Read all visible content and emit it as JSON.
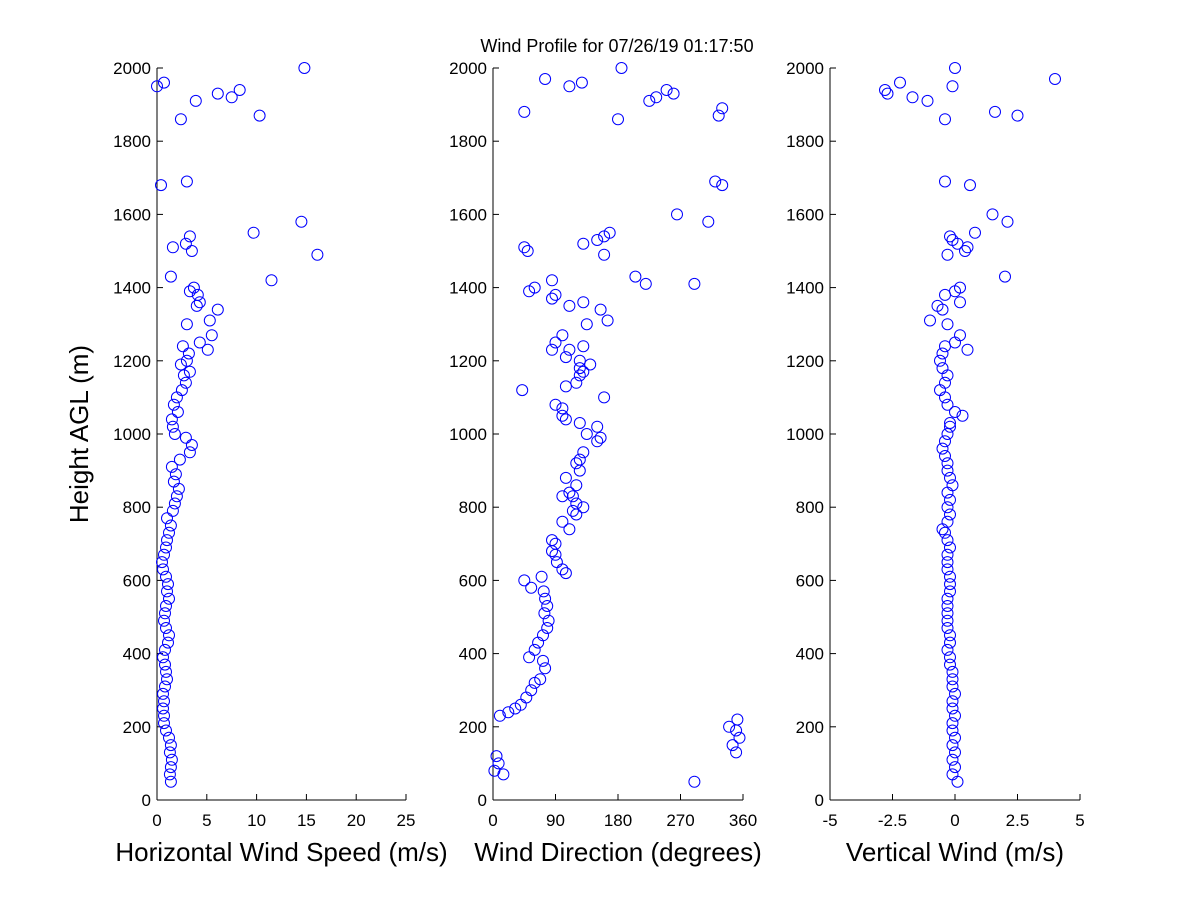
{
  "title": "Wind Profile for  07/26/19 01:17:50",
  "ylabel": "Height AGL (m)",
  "marker_color": "#0000FF",
  "chart_data": [
    {
      "type": "scatter",
      "xlabel": "Horizontal Wind Speed (m/s)",
      "xlim": [
        0,
        25
      ],
      "ylim": [
        0,
        2000
      ],
      "xticks": [
        "0",
        "5",
        "10",
        "15",
        "20",
        "25"
      ],
      "yticks": [
        "0",
        "200",
        "400",
        "600",
        "800",
        "1000",
        "1200",
        "1400",
        "1600",
        "1800",
        "2000"
      ],
      "grid": false,
      "points": [
        [
          1.4,
          50
        ],
        [
          1.3,
          70
        ],
        [
          1.4,
          90
        ],
        [
          1.5,
          110
        ],
        [
          1.3,
          130
        ],
        [
          1.4,
          150
        ],
        [
          1.2,
          170
        ],
        [
          0.9,
          190
        ],
        [
          0.7,
          210
        ],
        [
          0.7,
          230
        ],
        [
          0.6,
          250
        ],
        [
          0.7,
          270
        ],
        [
          0.6,
          290
        ],
        [
          0.8,
          310
        ],
        [
          1.0,
          330
        ],
        [
          0.9,
          350
        ],
        [
          0.8,
          370
        ],
        [
          0.6,
          390
        ],
        [
          0.8,
          410
        ],
        [
          1.1,
          430
        ],
        [
          1.2,
          450
        ],
        [
          0.9,
          470
        ],
        [
          0.7,
          490
        ],
        [
          0.8,
          510
        ],
        [
          0.9,
          530
        ],
        [
          1.2,
          550
        ],
        [
          1.0,
          570
        ],
        [
          1.1,
          590
        ],
        [
          0.9,
          610
        ],
        [
          0.6,
          630
        ],
        [
          0.5,
          650
        ],
        [
          0.7,
          670
        ],
        [
          0.9,
          690
        ],
        [
          1.0,
          710
        ],
        [
          1.2,
          730
        ],
        [
          1.4,
          750
        ],
        [
          1.0,
          770
        ],
        [
          1.6,
          790
        ],
        [
          1.8,
          810
        ],
        [
          2.0,
          830
        ],
        [
          2.2,
          850
        ],
        [
          1.7,
          870
        ],
        [
          1.9,
          890
        ],
        [
          1.5,
          910
        ],
        [
          2.3,
          930
        ],
        [
          3.3,
          950
        ],
        [
          3.5,
          970
        ],
        [
          2.9,
          990
        ],
        [
          1.8,
          1000
        ],
        [
          1.6,
          1020
        ],
        [
          1.5,
          1040
        ],
        [
          2.1,
          1060
        ],
        [
          1.7,
          1080
        ],
        [
          2.0,
          1100
        ],
        [
          2.5,
          1120
        ],
        [
          2.9,
          1140
        ],
        [
          2.7,
          1160
        ],
        [
          3.3,
          1170
        ],
        [
          2.4,
          1190
        ],
        [
          3.0,
          1200
        ],
        [
          3.2,
          1220
        ],
        [
          5.1,
          1230
        ],
        [
          2.6,
          1240
        ],
        [
          4.3,
          1250
        ],
        [
          5.5,
          1270
        ],
        [
          3.0,
          1300
        ],
        [
          5.3,
          1310
        ],
        [
          6.1,
          1340
        ],
        [
          4.0,
          1350
        ],
        [
          4.3,
          1360
        ],
        [
          4.1,
          1380
        ],
        [
          3.7,
          1400
        ],
        [
          3.3,
          1390
        ],
        [
          11.5,
          1420
        ],
        [
          1.4,
          1430
        ],
        [
          16.1,
          1490
        ],
        [
          3.5,
          1500
        ],
        [
          1.6,
          1510
        ],
        [
          2.9,
          1520
        ],
        [
          3.3,
          1540
        ],
        [
          9.7,
          1550
        ],
        [
          14.5,
          1580
        ],
        [
          0.4,
          1680
        ],
        [
          3.0,
          1690
        ],
        [
          2.4,
          1860
        ],
        [
          10.3,
          1870
        ],
        [
          3.9,
          1910
        ],
        [
          7.5,
          1920
        ],
        [
          6.1,
          1930
        ],
        [
          8.3,
          1940
        ],
        [
          0.0,
          1950
        ],
        [
          0.7,
          1960
        ],
        [
          14.8,
          2000
        ]
      ]
    },
    {
      "type": "scatter",
      "xlabel": "Wind Direction (degrees)",
      "xlim": [
        0,
        360
      ],
      "ylim": [
        0,
        2000
      ],
      "xticks": [
        "0",
        "90",
        "180",
        "270",
        "360"
      ],
      "yticks": [
        "0",
        "200",
        "400",
        "600",
        "800",
        "1000",
        "1200",
        "1400",
        "1600",
        "1800",
        "2000"
      ],
      "grid": false,
      "points": [
        [
          290,
          50
        ],
        [
          15,
          70
        ],
        [
          2,
          80
        ],
        [
          8,
          100
        ],
        [
          5,
          120
        ],
        [
          10,
          230
        ],
        [
          22,
          240
        ],
        [
          32,
          250
        ],
        [
          40,
          260
        ],
        [
          48,
          280
        ],
        [
          55,
          300
        ],
        [
          60,
          320
        ],
        [
          68,
          330
        ],
        [
          75,
          360
        ],
        [
          72,
          380
        ],
        [
          52,
          390
        ],
        [
          60,
          410
        ],
        [
          65,
          430
        ],
        [
          72,
          450
        ],
        [
          78,
          470
        ],
        [
          80,
          490
        ],
        [
          74,
          510
        ],
        [
          78,
          530
        ],
        [
          75,
          550
        ],
        [
          73,
          570
        ],
        [
          55,
          580
        ],
        [
          45,
          600
        ],
        [
          70,
          610
        ],
        [
          105,
          620
        ],
        [
          100,
          630
        ],
        [
          92,
          650
        ],
        [
          90,
          670
        ],
        [
          85,
          680
        ],
        [
          90,
          700
        ],
        [
          85,
          710
        ],
        [
          110,
          740
        ],
        [
          100,
          760
        ],
        [
          120,
          780
        ],
        [
          115,
          790
        ],
        [
          130,
          800
        ],
        [
          120,
          810
        ],
        [
          115,
          830
        ],
        [
          100,
          830
        ],
        [
          110,
          840
        ],
        [
          120,
          860
        ],
        [
          105,
          880
        ],
        [
          125,
          900
        ],
        [
          120,
          920
        ],
        [
          125,
          930
        ],
        [
          130,
          950
        ],
        [
          150,
          980
        ],
        [
          155,
          990
        ],
        [
          135,
          1000
        ],
        [
          150,
          1020
        ],
        [
          125,
          1030
        ],
        [
          105,
          1040
        ],
        [
          100,
          1050
        ],
        [
          100,
          1070
        ],
        [
          90,
          1080
        ],
        [
          160,
          1100
        ],
        [
          42,
          1120
        ],
        [
          105,
          1130
        ],
        [
          120,
          1140
        ],
        [
          125,
          1160
        ],
        [
          130,
          1170
        ],
        [
          125,
          1180
        ],
        [
          140,
          1190
        ],
        [
          125,
          1200
        ],
        [
          105,
          1210
        ],
        [
          110,
          1230
        ],
        [
          85,
          1230
        ],
        [
          130,
          1240
        ],
        [
          90,
          1250
        ],
        [
          100,
          1270
        ],
        [
          135,
          1300
        ],
        [
          165,
          1310
        ],
        [
          155,
          1340
        ],
        [
          110,
          1350
        ],
        [
          130,
          1360
        ],
        [
          85,
          1370
        ],
        [
          90,
          1380
        ],
        [
          52,
          1390
        ],
        [
          60,
          1400
        ],
        [
          220,
          1410
        ],
        [
          290,
          1410
        ],
        [
          85,
          1420
        ],
        [
          205,
          1430
        ],
        [
          160,
          1490
        ],
        [
          50,
          1500
        ],
        [
          45,
          1510
        ],
        [
          130,
          1520
        ],
        [
          150,
          1530
        ],
        [
          160,
          1540
        ],
        [
          168,
          1550
        ],
        [
          310,
          1580
        ],
        [
          265,
          1600
        ],
        [
          320,
          1690
        ],
        [
          330,
          1680
        ],
        [
          180,
          1860
        ],
        [
          45,
          1880
        ],
        [
          325,
          1870
        ],
        [
          330,
          1890
        ],
        [
          225,
          1910
        ],
        [
          235,
          1920
        ],
        [
          260,
          1930
        ],
        [
          250,
          1940
        ],
        [
          110,
          1950
        ],
        [
          128,
          1960
        ],
        [
          75,
          1970
        ],
        [
          185,
          2000
        ],
        [
          345,
          150
        ],
        [
          350,
          130
        ],
        [
          355,
          170
        ],
        [
          350,
          190
        ],
        [
          340,
          200
        ],
        [
          352,
          220
        ]
      ]
    },
    {
      "type": "scatter",
      "xlabel": "Vertical Wind (m/s)",
      "xlim": [
        -5,
        5
      ],
      "ylim": [
        0,
        2000
      ],
      "xticks": [
        "-5",
        "-2.5",
        "0",
        "2.5",
        "5"
      ],
      "yticks": [
        "0",
        "200",
        "400",
        "600",
        "800",
        "1000",
        "1200",
        "1400",
        "1600",
        "1800",
        "2000"
      ],
      "grid": false,
      "points": [
        [
          0.1,
          50
        ],
        [
          -0.1,
          70
        ],
        [
          0.0,
          90
        ],
        [
          -0.1,
          110
        ],
        [
          0.0,
          130
        ],
        [
          -0.1,
          150
        ],
        [
          0.0,
          170
        ],
        [
          -0.1,
          190
        ],
        [
          -0.1,
          210
        ],
        [
          0.0,
          230
        ],
        [
          -0.1,
          250
        ],
        [
          -0.1,
          270
        ],
        [
          0.0,
          290
        ],
        [
          -0.1,
          310
        ],
        [
          -0.1,
          330
        ],
        [
          -0.1,
          350
        ],
        [
          -0.2,
          370
        ],
        [
          -0.2,
          390
        ],
        [
          -0.3,
          410
        ],
        [
          -0.2,
          430
        ],
        [
          -0.2,
          450
        ],
        [
          -0.3,
          470
        ],
        [
          -0.3,
          490
        ],
        [
          -0.3,
          510
        ],
        [
          -0.3,
          530
        ],
        [
          -0.3,
          550
        ],
        [
          -0.2,
          570
        ],
        [
          -0.2,
          590
        ],
        [
          -0.2,
          610
        ],
        [
          -0.3,
          630
        ],
        [
          -0.3,
          650
        ],
        [
          -0.3,
          670
        ],
        [
          -0.2,
          690
        ],
        [
          -0.3,
          710
        ],
        [
          -0.4,
          730
        ],
        [
          -0.5,
          740
        ],
        [
          -0.3,
          760
        ],
        [
          -0.2,
          780
        ],
        [
          -0.3,
          800
        ],
        [
          -0.2,
          820
        ],
        [
          -0.3,
          840
        ],
        [
          -0.1,
          860
        ],
        [
          -0.2,
          880
        ],
        [
          -0.3,
          900
        ],
        [
          -0.3,
          920
        ],
        [
          -0.4,
          940
        ],
        [
          -0.5,
          960
        ],
        [
          -0.4,
          980
        ],
        [
          -0.3,
          1000
        ],
        [
          -0.2,
          1020
        ],
        [
          -0.2,
          1030
        ],
        [
          0.3,
          1050
        ],
        [
          0.0,
          1060
        ],
        [
          -0.3,
          1080
        ],
        [
          -0.4,
          1100
        ],
        [
          -0.6,
          1120
        ],
        [
          -0.4,
          1140
        ],
        [
          -0.3,
          1160
        ],
        [
          -0.5,
          1180
        ],
        [
          -0.6,
          1200
        ],
        [
          -0.5,
          1220
        ],
        [
          0.5,
          1230
        ],
        [
          -0.4,
          1240
        ],
        [
          0.0,
          1250
        ],
        [
          0.2,
          1270
        ],
        [
          -0.3,
          1300
        ],
        [
          -1.0,
          1310
        ],
        [
          -0.5,
          1340
        ],
        [
          -0.7,
          1350
        ],
        [
          0.2,
          1360
        ],
        [
          -0.4,
          1380
        ],
        [
          0.0,
          1390
        ],
        [
          0.2,
          1400
        ],
        [
          2.0,
          1430
        ],
        [
          -0.3,
          1490
        ],
        [
          0.4,
          1500
        ],
        [
          0.5,
          1510
        ],
        [
          0.1,
          1520
        ],
        [
          -0.1,
          1530
        ],
        [
          -0.2,
          1540
        ],
        [
          0.8,
          1550
        ],
        [
          2.1,
          1580
        ],
        [
          1.5,
          1600
        ],
        [
          0.6,
          1680
        ],
        [
          -0.4,
          1690
        ],
        [
          -0.4,
          1860
        ],
        [
          2.5,
          1870
        ],
        [
          1.6,
          1880
        ],
        [
          -1.1,
          1910
        ],
        [
          -1.7,
          1920
        ],
        [
          -2.7,
          1930
        ],
        [
          -2.8,
          1940
        ],
        [
          -0.1,
          1950
        ],
        [
          -2.2,
          1960
        ],
        [
          4.0,
          1970
        ],
        [
          0.0,
          2000
        ]
      ]
    }
  ]
}
